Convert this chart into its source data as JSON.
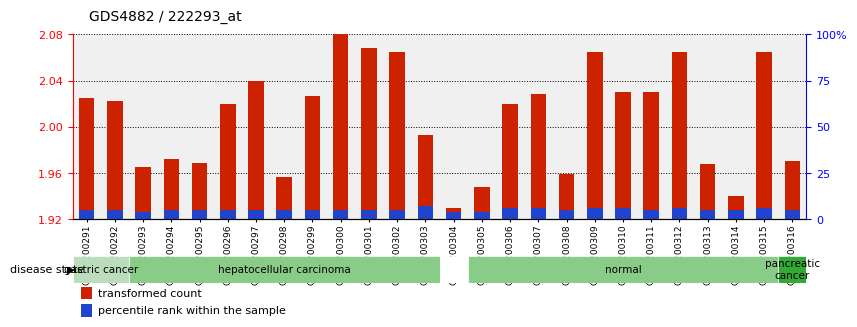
{
  "title": "GDS4882 / 222293_at",
  "samples": [
    "GSM1200291",
    "GSM1200292",
    "GSM1200293",
    "GSM1200294",
    "GSM1200295",
    "GSM1200296",
    "GSM1200297",
    "GSM1200298",
    "GSM1200299",
    "GSM1200300",
    "GSM1200301",
    "GSM1200302",
    "GSM1200303",
    "GSM1200304",
    "GSM1200305",
    "GSM1200306",
    "GSM1200307",
    "GSM1200308",
    "GSM1200309",
    "GSM1200310",
    "GSM1200311",
    "GSM1200312",
    "GSM1200313",
    "GSM1200314",
    "GSM1200315",
    "GSM1200316"
  ],
  "transformed_count": [
    2.025,
    2.022,
    1.965,
    1.972,
    1.969,
    2.02,
    2.04,
    1.957,
    2.027,
    2.08,
    2.068,
    2.065,
    1.993,
    1.93,
    1.948,
    2.02,
    2.028,
    1.959,
    2.065,
    2.03,
    2.03,
    2.065,
    1.968,
    1.94,
    2.065,
    1.97
  ],
  "percentile_rank": [
    5,
    5,
    4,
    5,
    5,
    5,
    5,
    5,
    5,
    5,
    5,
    5,
    7,
    4,
    4,
    6,
    6,
    5,
    6,
    6,
    5,
    6,
    5,
    5,
    6,
    5
  ],
  "disease_groups": [
    {
      "label": "gastric cancer",
      "start": 0,
      "end": 1,
      "color": "#aaddaa"
    },
    {
      "label": "hepatocellular carcinoma",
      "start": 2,
      "end": 12,
      "color": "#88cc88"
    },
    {
      "label": "normal",
      "start": 13,
      "end": 24,
      "color": "#88cc88"
    },
    {
      "label": "pancreatic\ncancer",
      "start": 25,
      "end": 25,
      "color": "#44bb44"
    }
  ],
  "ylim_left": [
    1.92,
    2.08
  ],
  "ylim_right": [
    0,
    100
  ],
  "yticks_left": [
    1.92,
    1.96,
    2.0,
    2.04,
    2.08
  ],
  "yticks_right": [
    0,
    25,
    50,
    75,
    100
  ],
  "bar_color_red": "#cc2200",
  "bar_color_blue": "#2244cc",
  "bar_width": 0.55,
  "group_colors": [
    "#bbddbb",
    "#88cc88",
    "#88cc88",
    "#33aa33"
  ]
}
